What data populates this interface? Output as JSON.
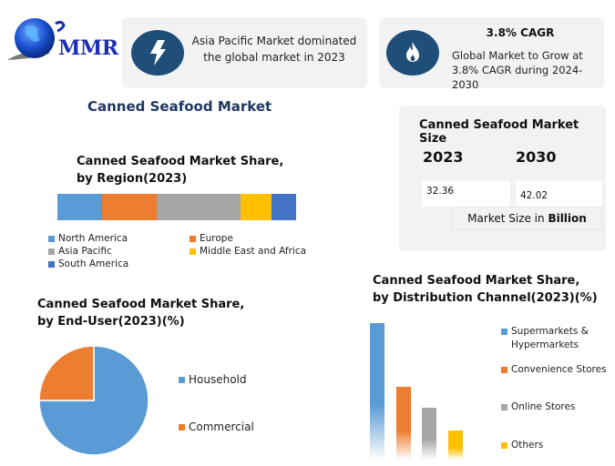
{
  "brand": {
    "logo_text": "MMR"
  },
  "cards": {
    "region_highlight": {
      "icon": "lightning-bolt-icon",
      "text": "Asia Pacific Market dominated the global market in  2023"
    },
    "cagr": {
      "icon": "flame-icon",
      "title": "3.8% CAGR",
      "text": "Global Market to Grow at 3.8% CAGR during 2024-2030"
    }
  },
  "main_title": "Canned Seafood Market",
  "market_size": {
    "title": "Canned Seafood Market Size",
    "years": [
      "2023",
      "2030"
    ],
    "values": [
      "32.36",
      "42.02"
    ],
    "unit_prefix": "Market Size in ",
    "unit_bold": "Billion"
  },
  "colors": {
    "blue": "#5b9bd5",
    "orange": "#ed7d31",
    "gray": "#a5a5a5",
    "yellow": "#ffc000",
    "dark_blue": "#4472c4",
    "navy": "#1f4e79",
    "title_navy": "#1f3864"
  },
  "chart_data": [
    {
      "type": "bar",
      "orientation": "horizontal-stacked-100",
      "title": "Canned Seafood Market Share, by Region(2023)",
      "categories": [
        "North America",
        "Europe",
        "Asia Pacific",
        "Middle East and Africa",
        "South America"
      ],
      "values": [
        18.7,
        22.9,
        35.1,
        13.0,
        10.3
      ],
      "colors": [
        "#5b9bd5",
        "#ed7d31",
        "#a5a5a5",
        "#ffc000",
        "#4472c4"
      ],
      "legend_position": "bottom"
    },
    {
      "type": "pie",
      "title": "Canned Seafood Market Share, by End-User(2023)(%)",
      "categories": [
        "Household",
        "Commercial"
      ],
      "values": [
        75,
        25
      ],
      "colors": [
        "#5b9bd5",
        "#ed7d31"
      ],
      "legend_position": "right"
    },
    {
      "type": "bar",
      "title": "Canned Seafood Market Share, by Distribution Channel(2023)(%)",
      "categories": [
        "Supermarkets & Hypermarkets",
        "Convenience Stores",
        "Online Stores",
        "Others"
      ],
      "values": [
        47,
        25,
        18,
        10
      ],
      "colors": [
        "#5b9bd5",
        "#ed7d31",
        "#a5a5a5",
        "#ffc000"
      ],
      "legend_position": "right",
      "grid": false
    }
  ],
  "region_chart": {
    "title_line1": "Canned Seafood Market Share,",
    "title_line2": "by Region(2023)",
    "legend": [
      "North America",
      "Europe",
      "Asia Pacific",
      "Middle East and Africa",
      "South America"
    ]
  },
  "enduser_chart": {
    "title_line1": "Canned Seafood Market Share,",
    "title_line2": "by End-User(2023)(%)",
    "legend": [
      "Household",
      "Commercial"
    ]
  },
  "distribution_chart": {
    "title_line1": "Canned Seafood Market Share,",
    "title_line2": "by Distribution Channel(2023)(%)",
    "legend": [
      "Supermarkets &",
      "Hypermarkets",
      "Convenience Stores",
      "Online Stores",
      "Others"
    ]
  }
}
